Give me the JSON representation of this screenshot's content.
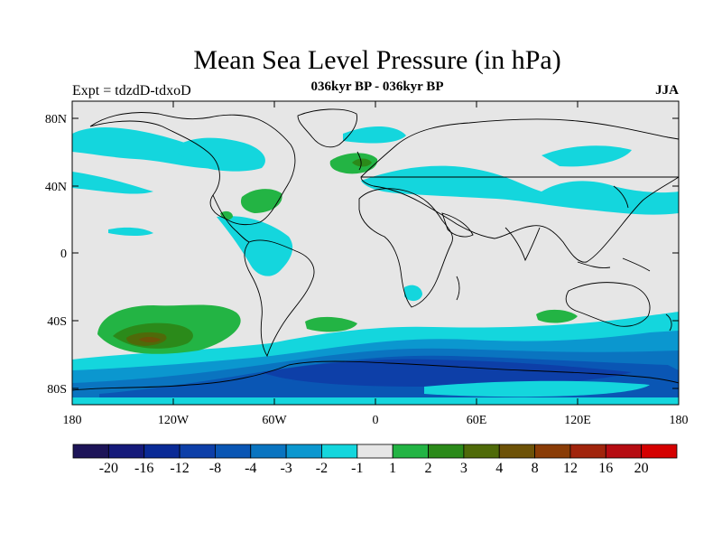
{
  "figure": {
    "title": "Mean Sea Level Pressure (in hPa)",
    "subtitle": "036kyr BP - 036kyr BP",
    "left_label": "Expt = tdzdD-tdxoD",
    "right_label": "JJA"
  },
  "axes": {
    "x_ticks": [
      "180",
      "120W",
      "60W",
      "0",
      "60E",
      "120E",
      "180"
    ],
    "y_ticks": [
      "80N",
      "40N",
      "0",
      "40S",
      "80S"
    ]
  },
  "colorbar": {
    "labels": [
      "-20",
      "-16",
      "-12",
      "-8",
      "-4",
      "-3",
      "-2",
      "-1",
      "1",
      "2",
      "3",
      "4",
      "8",
      "12",
      "16",
      "20"
    ],
    "colors": [
      "#1d1458",
      "#151a7a",
      "#0a2a96",
      "#0d3fa8",
      "#0a56b4",
      "#0a74c0",
      "#0b97cf",
      "#14d6dd",
      "#e6e6e6",
      "#23b444",
      "#2b8a1a",
      "#4f6a09",
      "#6d5207",
      "#8a3c06",
      "#a1240c",
      "#b60c12",
      "#d50000"
    ]
  }
}
